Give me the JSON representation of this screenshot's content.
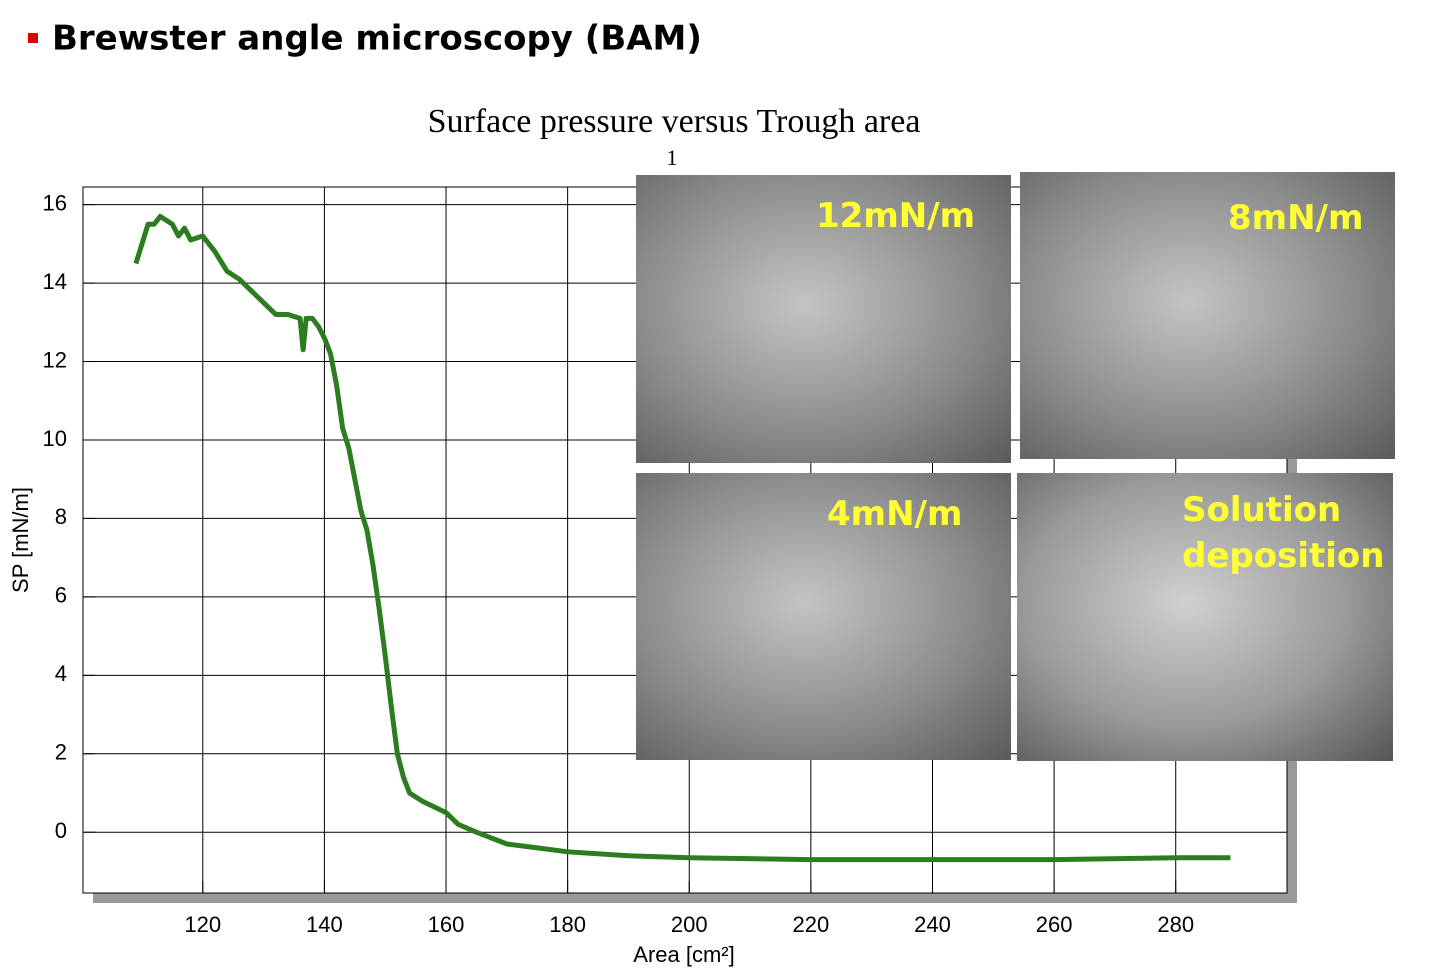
{
  "heading": "Brewster angle microscopy (BAM)",
  "chart_data": {
    "type": "line",
    "title": "Surface pressure versus Trough area",
    "subtitle": "1",
    "x_label": "Area [cm²]",
    "y_label": "SP [mN/m]",
    "xlim": [
      100.3,
      298.3
    ],
    "ylim": [
      -1.55,
      16.45
    ],
    "xticks": [
      120,
      140,
      160,
      180,
      200,
      220,
      240,
      260,
      280
    ],
    "yticks": [
      0,
      2,
      4,
      6,
      8,
      10,
      12,
      14,
      16
    ],
    "grid": true,
    "annotations": [
      "12mN/m",
      "8mN/m",
      "4mN/m",
      "Solution deposition"
    ],
    "series": [
      {
        "color": "#2b7d1f",
        "x": [
          109,
          110,
          111,
          112,
          113,
          115,
          116,
          117,
          118,
          120,
          121,
          122,
          124,
          126,
          128,
          130,
          132,
          134,
          136,
          136.5,
          137,
          138,
          139,
          140,
          141,
          142,
          143,
          144,
          145,
          146,
          147,
          148,
          149,
          150,
          151,
          152,
          153,
          154,
          156,
          158,
          160,
          162,
          165,
          170,
          175,
          180,
          190,
          200,
          220,
          240,
          260,
          280,
          289
        ],
        "values": [
          14.5,
          15,
          15.5,
          15.5,
          15.7,
          15.5,
          15.2,
          15.4,
          15.1,
          15.2,
          15,
          14.8,
          14.3,
          14.1,
          13.8,
          13.5,
          13.2,
          13.2,
          13.1,
          12.3,
          13.1,
          13.1,
          12.9,
          12.6,
          12.2,
          11.4,
          10.3,
          9.8,
          9,
          8.2,
          7.7,
          6.8,
          5.7,
          4.5,
          3.2,
          2,
          1.4,
          1,
          0.8,
          0.65,
          0.5,
          0.2,
          0,
          -0.3,
          -0.4,
          -0.5,
          -0.6,
          -0.65,
          -0.7,
          -0.7,
          -0.7,
          -0.65,
          -0.65
        ]
      }
    ]
  }
}
